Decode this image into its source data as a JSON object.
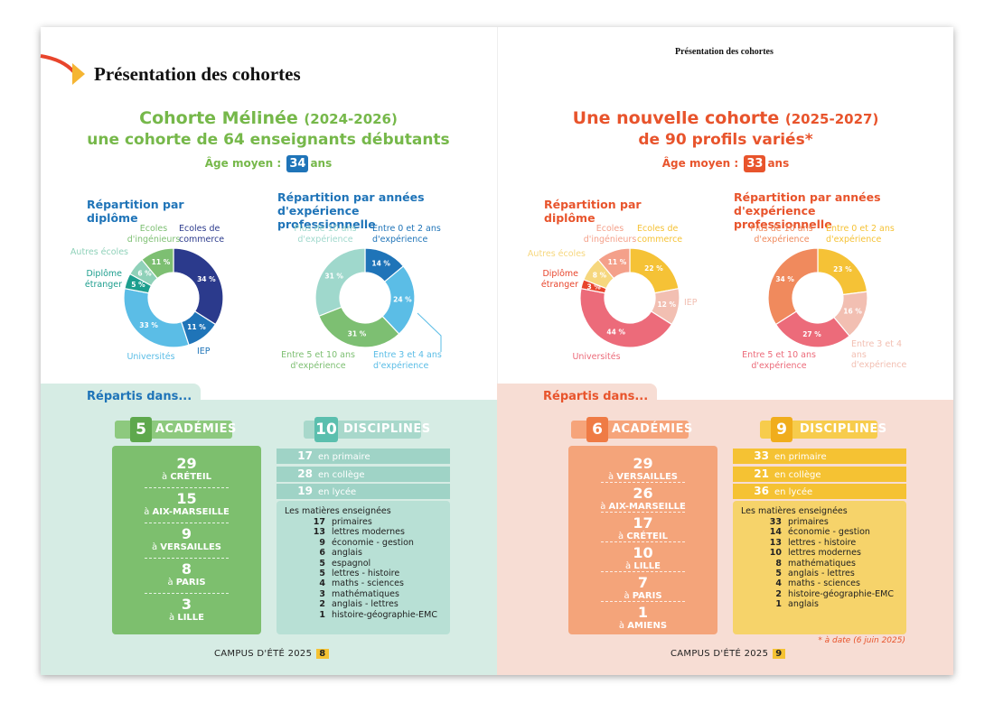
{
  "header": {
    "title": "Présentation des cohortes",
    "running_title": "Présentation des cohortes"
  },
  "pages": [
    {
      "cohort_title": "Cohorte Mélinée",
      "period": "(2024-2026)",
      "subtitle": "une cohorte de 64 enseignants débutants",
      "age_label": "Âge moyen :",
      "age": 34,
      "age_unit": "ans",
      "section_title": "Répartis dans...",
      "academies": {
        "count": 5,
        "label": "ACADÉMIES",
        "prefix": "à",
        "items": [
          {
            "value": 29,
            "place": "CRÉTEIL"
          },
          {
            "value": 15,
            "place": "AIX-MARSEILLE"
          },
          {
            "value": 9,
            "place": "VERSAILLES"
          },
          {
            "value": 8,
            "place": "PARIS"
          },
          {
            "value": 3,
            "place": "LILLE"
          }
        ]
      },
      "disciplines": {
        "count": 10,
        "label": "DISCIPLINES",
        "levels": [
          {
            "value": 17,
            "label": "en primaire"
          },
          {
            "value": 28,
            "label": "en collège"
          },
          {
            "value": 19,
            "label": "en lycée"
          }
        ],
        "subjects_title": "Les matières enseignées",
        "subjects": [
          {
            "value": 17,
            "label": "primaires"
          },
          {
            "value": 13,
            "label": "lettres modernes"
          },
          {
            "value": 9,
            "label": "économie - gestion"
          },
          {
            "value": 6,
            "label": "anglais"
          },
          {
            "value": 5,
            "label": "espagnol"
          },
          {
            "value": 5,
            "label": "lettres - histoire"
          },
          {
            "value": 4,
            "label": "maths - sciences"
          },
          {
            "value": 3,
            "label": "mathématiques"
          },
          {
            "value": 2,
            "label": "anglais - lettres"
          },
          {
            "value": 1,
            "label": "histoire-géographie-EMC"
          }
        ]
      },
      "footer": {
        "label": "CAMPUS D'ÉTÉ 2025",
        "page": 8
      }
    },
    {
      "cohort_title": "Une nouvelle cohorte",
      "period": "(2025-2027)",
      "subtitle": "de 90 profils variés*",
      "age_label": "Âge moyen :",
      "age": 33,
      "age_unit": "ans",
      "section_title": "Répartis dans...",
      "academies": {
        "count": 6,
        "label": "ACADÉMIES",
        "prefix": "à",
        "items": [
          {
            "value": 29,
            "place": "VERSAILLES"
          },
          {
            "value": 26,
            "place": "AIX-MARSEILLE"
          },
          {
            "value": 17,
            "place": "CRÉTEIL"
          },
          {
            "value": 10,
            "place": "LILLE"
          },
          {
            "value": 7,
            "place": "PARIS"
          },
          {
            "value": 1,
            "place": "AMIENS"
          }
        ]
      },
      "disciplines": {
        "count": 9,
        "label": "DISCIPLINES",
        "levels": [
          {
            "value": 33,
            "label": "en primaire"
          },
          {
            "value": 21,
            "label": "en collège"
          },
          {
            "value": 36,
            "label": "en lycée"
          }
        ],
        "subjects_title": "Les matières enseignées",
        "subjects": [
          {
            "value": 33,
            "label": "primaires"
          },
          {
            "value": 14,
            "label": "économie - gestion"
          },
          {
            "value": 13,
            "label": "lettres - histoire"
          },
          {
            "value": 10,
            "label": "lettres modernes"
          },
          {
            "value": 8,
            "label": "mathématiques"
          },
          {
            "value": 5,
            "label": "anglais - lettres"
          },
          {
            "value": 4,
            "label": "maths - sciences"
          },
          {
            "value": 2,
            "label": "histoire-géographie-EMC"
          },
          {
            "value": 1,
            "label": "anglais"
          }
        ]
      },
      "footnote": "* à date (6 juin 2025)",
      "footer": {
        "label": "CAMPUS D'ÉTÉ 2025",
        "page": 9
      }
    }
  ],
  "chart_data": [
    {
      "type": "pie",
      "donut": true,
      "title": "Répartition par diplôme",
      "categories": [
        "Ecoles de commerce",
        "IEP",
        "Universités",
        "Diplôme étranger",
        "Autres écoles",
        "Ecoles d'ingénieurs"
      ],
      "values": [
        34,
        11,
        33,
        5,
        6,
        11
      ],
      "value_labels": [
        "34 %",
        "11 %",
        "33 %",
        "5 %",
        "6 %",
        "11 %"
      ],
      "colors": [
        "#2b3a8c",
        "#1f74b8",
        "#5bbde6",
        "#1d9e8e",
        "#8fd1b9",
        "#7dbf72"
      ]
    },
    {
      "type": "pie",
      "donut": true,
      "title": "Répartition par années d'expérience professionnelle",
      "categories": [
        "Entre 0 et 2 ans d'expérience",
        "Entre 3 et 4 ans d'expérience",
        "Entre 5 et 10 ans d'expérience",
        "Plus de 10 ans d'expérience"
      ],
      "values": [
        14,
        24,
        31,
        31
      ],
      "value_labels": [
        "14 %",
        "24 %",
        "31 %",
        "31 %"
      ],
      "colors": [
        "#1f74b8",
        "#5bbde6",
        "#7dbf72",
        "#9fd8cc"
      ]
    },
    {
      "type": "pie",
      "donut": true,
      "title": "Répartition par diplôme",
      "categories": [
        "Ecoles de commerce",
        "IEP",
        "Universités",
        "Diplôme étranger",
        "Autres écoles",
        "Ecoles d'ingénieurs"
      ],
      "values": [
        22,
        12,
        44,
        3,
        8,
        11
      ],
      "value_labels": [
        "22 %",
        "12 %",
        "44 %",
        "3 %",
        "8 %",
        "11 %"
      ],
      "colors": [
        "#f5c236",
        "#f2bfb2",
        "#ec6b7a",
        "#e8452c",
        "#f6d77e",
        "#f4a08a"
      ]
    },
    {
      "type": "pie",
      "donut": true,
      "title": "Répartition par années d'expérience professionnelle",
      "categories": [
        "Entre 0 et 2 ans d'expérience",
        "Entre 3 et 4 ans d'expérience",
        "Entre 5 et 10 ans d'expérience",
        "Plus de 10 ans d'expérience"
      ],
      "values": [
        23,
        16,
        27,
        34
      ],
      "value_labels": [
        "23 %",
        "16 %",
        "27 %",
        "34 %"
      ],
      "colors": [
        "#f5c236",
        "#f2bfb2",
        "#ec6b7a",
        "#f08a5d"
      ]
    }
  ]
}
